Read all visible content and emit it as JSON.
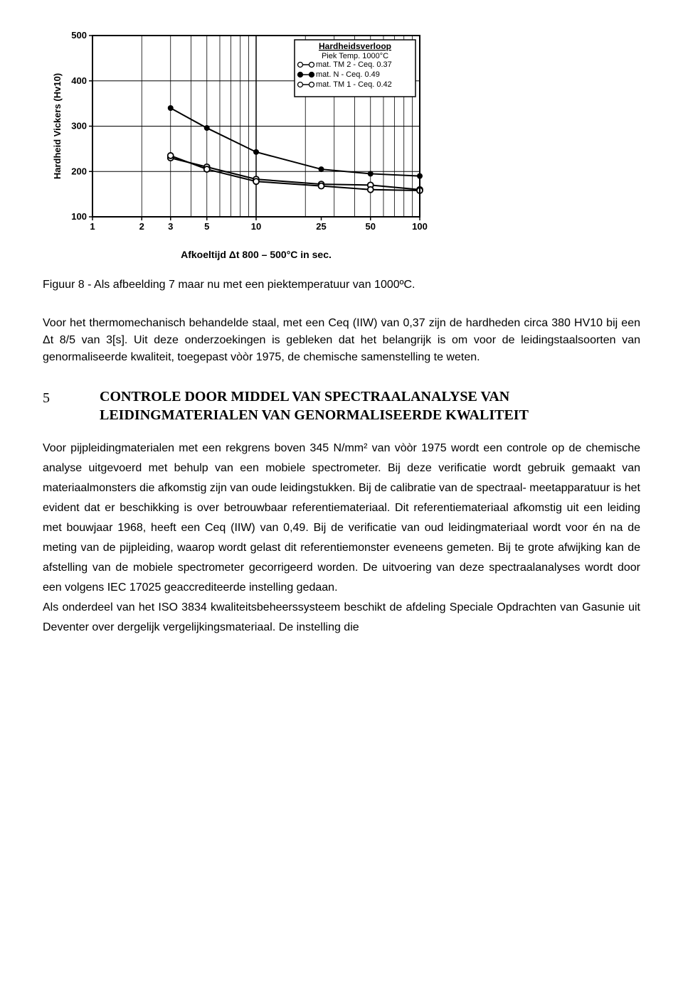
{
  "chart": {
    "type": "line-scatter",
    "ylabel": "Hardheid Vickers (Hv10)",
    "ylabel_fontsize": 13,
    "xlabel": "Afkoeltijd    Δt 800 – 500°C in sec.",
    "xlabel_fontsize": 14,
    "ylim": [
      100,
      500
    ],
    "ytick_step": 100,
    "yticks": [
      100,
      200,
      300,
      400,
      500
    ],
    "xscale": "log",
    "xlim": [
      1,
      100
    ],
    "xticks_major": [
      1,
      2,
      3,
      5,
      10,
      25,
      50,
      100
    ],
    "background_color": "#ffffff",
    "grid_color": "#000000",
    "border_color": "#000000",
    "line_width": 2,
    "marker_size": 6,
    "legend": {
      "title": "Hardheidsverloop",
      "subtitle": "Piek Temp. 1000°C",
      "items": [
        {
          "marker": "circle-open-line",
          "label": "mat. TM 2 - Ceq. 0.37"
        },
        {
          "marker": "circle-filled-line",
          "label": "mat.  N   - Ceq. 0.49"
        },
        {
          "marker": "circle-open-line",
          "label": "mat. TM 1 - Ceq. 0.42"
        }
      ],
      "position": "top-right",
      "fontsize": 11
    },
    "series": [
      {
        "name": "mat. N - Ceq. 0.49",
        "marker": "circle-filled",
        "color": "#000000",
        "points": [
          {
            "x": 3,
            "y": 340
          },
          {
            "x": 5,
            "y": 296
          },
          {
            "x": 10,
            "y": 243
          },
          {
            "x": 25,
            "y": 205
          },
          {
            "x": 50,
            "y": 195
          },
          {
            "x": 100,
            "y": 190
          }
        ]
      },
      {
        "name": "mat. TM 2 - Ceq. 0.37",
        "marker": "circle-open",
        "color": "#000000",
        "points": [
          {
            "x": 3,
            "y": 230
          },
          {
            "x": 5,
            "y": 210
          },
          {
            "x": 10,
            "y": 183
          },
          {
            "x": 25,
            "y": 172
          },
          {
            "x": 50,
            "y": 170
          },
          {
            "x": 100,
            "y": 160
          }
        ]
      },
      {
        "name": "mat. TM 1 - Ceq. 0.42",
        "marker": "circle-open",
        "color": "#000000",
        "points": [
          {
            "x": 3,
            "y": 235
          },
          {
            "x": 5,
            "y": 205
          },
          {
            "x": 10,
            "y": 178
          },
          {
            "x": 25,
            "y": 168
          },
          {
            "x": 50,
            "y": 160
          },
          {
            "x": 100,
            "y": 158
          }
        ]
      }
    ]
  },
  "caption": "Figuur 8 - Als afbeelding 7 maar nu met een piektemperatuur van 1000ºC.",
  "para1": "Voor het thermomechanisch behandelde staal,  met een Ceq (IIW) van 0,37 zijn de hardheden circa 380 HV10 bij een Δt 8/5 van 3[s]. Uit deze onderzoekingen is gebleken dat het belangrijk is om voor de leidingstaalsoorten van genormaliseerde kwaliteit, toegepast vòòr 1975, de chemische samenstelling te weten.",
  "section": {
    "num": "5",
    "title": "CONTROLE DOOR MIDDEL VAN SPECTRAALANALYSE VAN LEIDINGMATERIALEN VAN GENORMALISEERDE KWALITEIT"
  },
  "body": "Voor pijpleidingmaterialen met een rekgrens boven 345 N/mm² van vòòr 1975 wordt een controle op de chemische analyse uitgevoerd met behulp van een mobiele spectrometer. Bij deze verificatie wordt gebruik gemaakt van materiaalmonsters die afkomstig zijn van oude leidingstukken. Bij de calibratie van de spectraal- meetapparatuur is het evident dat er beschikking is over betrouwbaar referentiemateriaal. Dit referentiemateriaal afkomstig uit een leiding met bouwjaar 1968, heeft een Ceq (IIW) van 0,49. Bij de verificatie van oud leidingmateriaal wordt voor én na de meting van de pijpleiding, waarop wordt gelast  dit referentiemonster eveneens gemeten. Bij te grote afwijking kan de afstelling van de mobiele spectrometer gecorrigeerd worden. De uitvoering van deze spectraalanalyses wordt door een volgens IEC 17025 geaccrediteerde instelling gedaan.\nAls onderdeel van het ISO 3834 kwaliteitsbeheerssysteem beschikt de afdeling Speciale Opdrachten van Gasunie uit Deventer over dergelijk vergelijkingsmateriaal.  De instelling die"
}
